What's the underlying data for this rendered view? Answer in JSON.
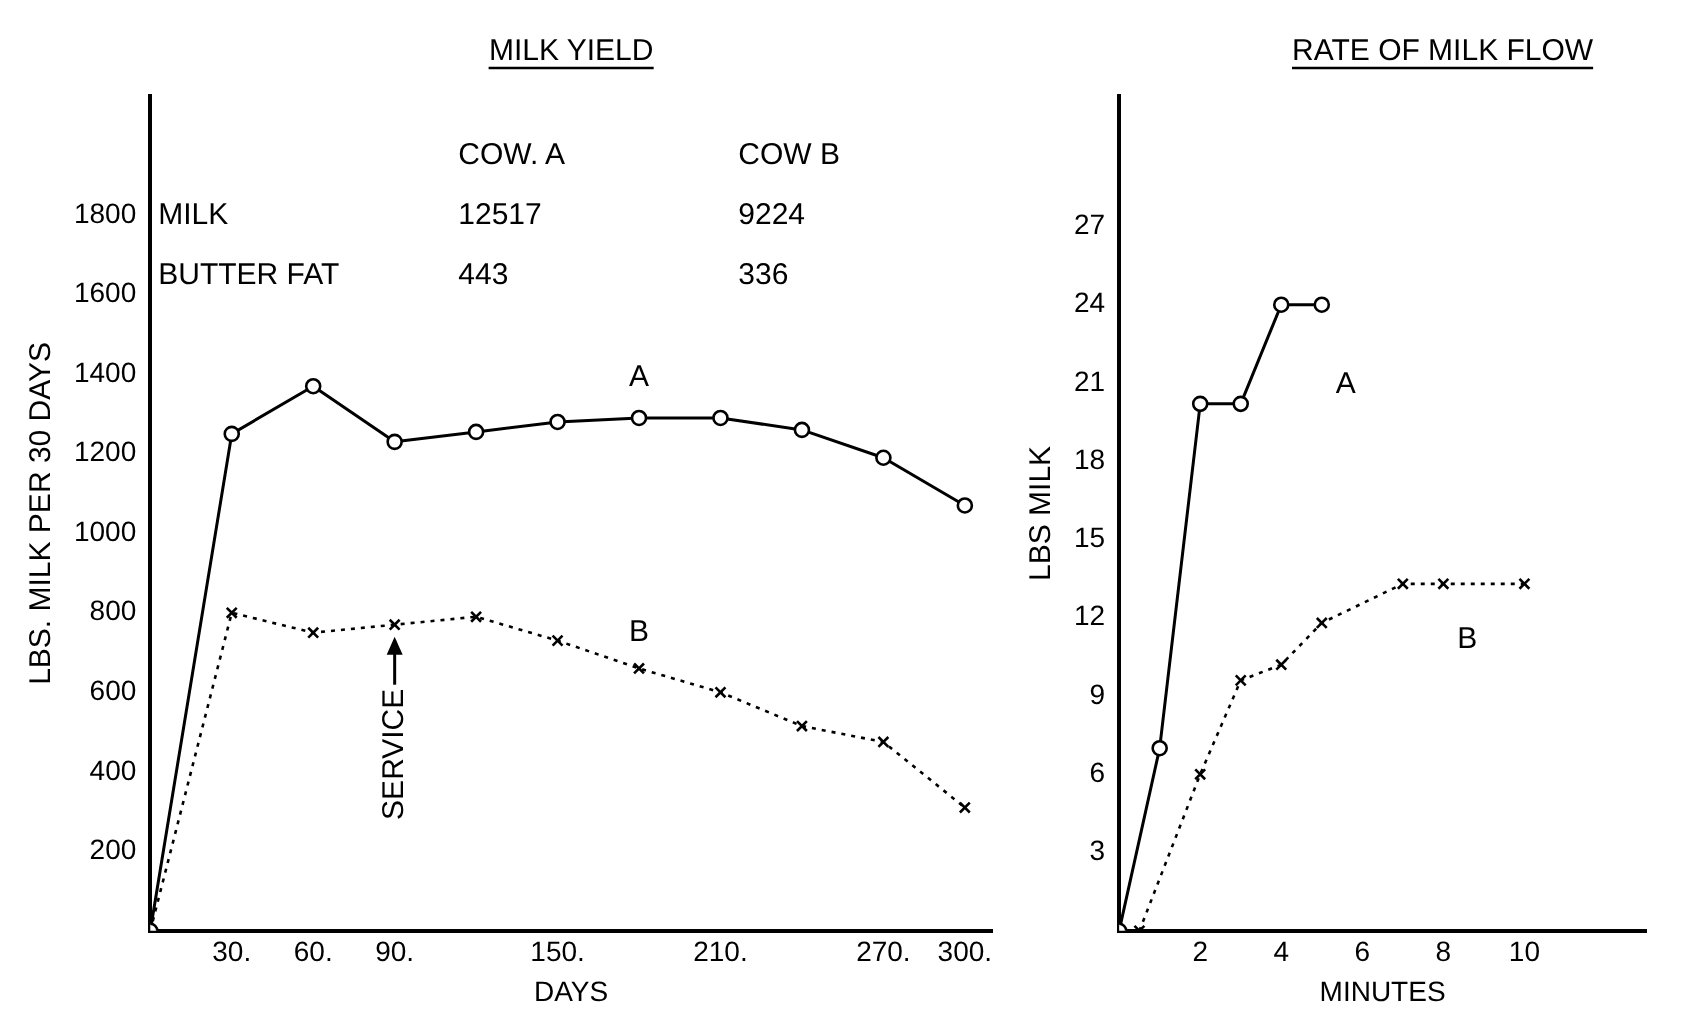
{
  "chart_data": [
    {
      "type": "line",
      "title": "MILK YIELD",
      "xlabel": "DAYS",
      "ylabel": "LBS. MILK PER 30 DAYS",
      "x": [
        0,
        30,
        60,
        90,
        120,
        150,
        180,
        210,
        240,
        270,
        300
      ],
      "series": [
        {
          "name": "A",
          "color": "#000000",
          "marker": "circle",
          "line_style": "solid",
          "values": [
            0,
            1250,
            1370,
            1230,
            1255,
            1280,
            1290,
            1290,
            1260,
            1190,
            1070
          ]
        },
        {
          "name": "B",
          "color": "#000000",
          "marker": "cross",
          "line_style": "dotted",
          "values": [
            0,
            800,
            750,
            770,
            790,
            730,
            660,
            600,
            515,
            475,
            310
          ]
        }
      ],
      "xlim": [
        0,
        310
      ],
      "xticks": [
        {
          "value": 30,
          "label": "30."
        },
        {
          "value": 60,
          "label": "60."
        },
        {
          "value": 90,
          "label": "90."
        },
        {
          "value": 150,
          "label": "150."
        },
        {
          "value": 210,
          "label": "210."
        },
        {
          "value": 270,
          "label": "270."
        },
        {
          "value": 300,
          "label": "300."
        }
      ],
      "ylim": [
        0,
        2100
      ],
      "yticks": [
        200,
        400,
        600,
        800,
        1000,
        1200,
        1400,
        1600,
        1800
      ],
      "grid": false,
      "legend": false,
      "annotations": [
        {
          "text": "SERVICE",
          "x": 90,
          "y": 770
        },
        "COW. A",
        "COW B",
        "MILK",
        "12517",
        "9224",
        "BUTTER FAT",
        "443",
        "336"
      ]
    },
    {
      "type": "line",
      "title": "RATE OF MILK FLOW",
      "xlabel": "MINUTES",
      "ylabel": "LBS MILK",
      "series": [
        {
          "name": "A",
          "color": "#000000",
          "marker": "circle",
          "line_style": "solid",
          "x": [
            0,
            1,
            2,
            3,
            4,
            5
          ],
          "values": [
            0,
            7,
            20.2,
            20.2,
            24,
            24
          ]
        },
        {
          "name": "B",
          "color": "#000000",
          "marker": "cross",
          "line_style": "dotted",
          "x": [
            0,
            0.5,
            2,
            3,
            4,
            5,
            7,
            8,
            10
          ],
          "values": [
            0,
            0,
            6,
            9.6,
            10.2,
            11.8,
            13.3,
            13.3,
            13.3
          ]
        }
      ],
      "xlim": [
        0,
        13
      ],
      "xticks": [
        2,
        4,
        6,
        8,
        10
      ],
      "ylim": [
        0,
        32
      ],
      "yticks": [
        3,
        6,
        9,
        12,
        15,
        18,
        21,
        24,
        27
      ],
      "grid": false,
      "legend": false
    }
  ]
}
